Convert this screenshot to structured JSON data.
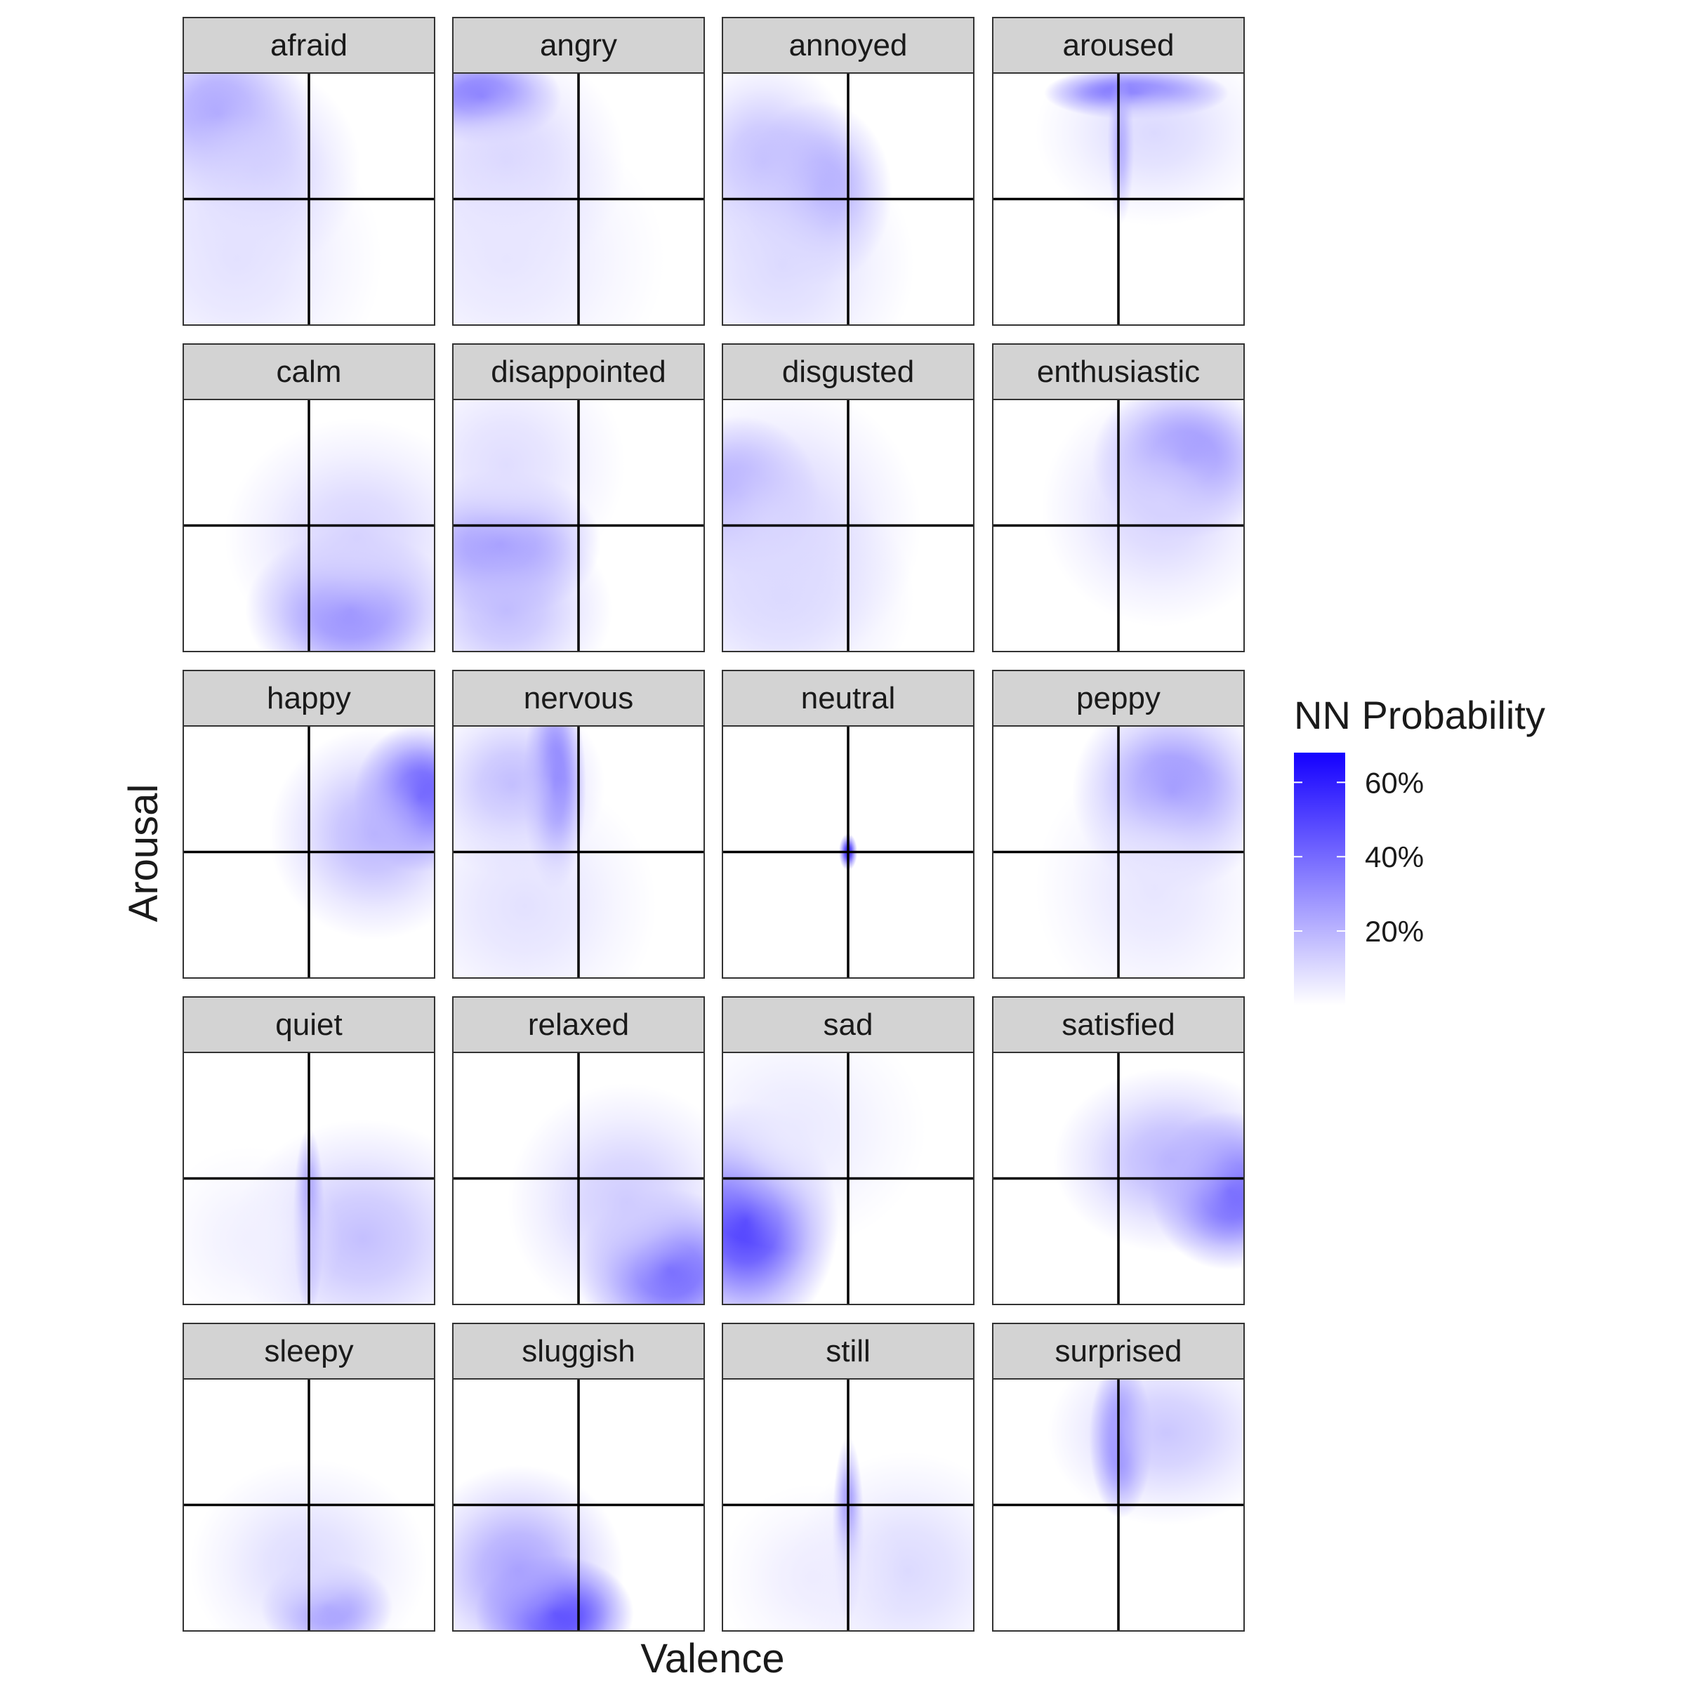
{
  "chart_data": {
    "type": "heatmap",
    "xlabel": "Valence",
    "ylabel": "Arousal",
    "xlim": [
      -1,
      1
    ],
    "ylim": [
      -1,
      1
    ],
    "grid": false,
    "reference_lines": {
      "x": 0,
      "y": 0
    },
    "facet_layout": {
      "rows": 5,
      "cols": 4
    },
    "legend": {
      "title": "NN Probability",
      "placement": "right",
      "range": [
        0,
        0.68
      ],
      "ticks": [
        0.2,
        0.4,
        0.6
      ],
      "tick_labels": [
        "20%",
        "40%",
        "60%"
      ],
      "low_color": "#ffffff",
      "high_color": "#1400ff"
    },
    "panels": [
      {
        "emotion": "afraid",
        "blobs": [
          {
            "x": -0.75,
            "y": 0.7,
            "sx": 0.35,
            "sy": 0.35,
            "peak": 0.27
          },
          {
            "x": -0.45,
            "y": 0.25,
            "sx": 0.4,
            "sy": 0.4,
            "peak": 0.15
          },
          {
            "x": -0.6,
            "y": -0.5,
            "sx": 0.55,
            "sy": 0.55,
            "peak": 0.08
          }
        ]
      },
      {
        "emotion": "angry",
        "blobs": [
          {
            "x": -0.8,
            "y": 0.85,
            "sx": 0.3,
            "sy": 0.18,
            "peak": 0.48
          },
          {
            "x": -0.6,
            "y": 0.3,
            "sx": 0.45,
            "sy": 0.45,
            "peak": 0.12
          },
          {
            "x": -0.6,
            "y": -0.5,
            "sx": 0.6,
            "sy": 0.55,
            "peak": 0.07
          }
        ]
      },
      {
        "emotion": "annoyed",
        "blobs": [
          {
            "x": -0.25,
            "y": 0.05,
            "sx": 0.28,
            "sy": 0.35,
            "peak": 0.3
          },
          {
            "x": -0.7,
            "y": 0.3,
            "sx": 0.35,
            "sy": 0.4,
            "peak": 0.18
          },
          {
            "x": -0.55,
            "y": -0.55,
            "sx": 0.5,
            "sy": 0.5,
            "peak": 0.1
          }
        ]
      },
      {
        "emotion": "aroused",
        "blobs": [
          {
            "x": 0.15,
            "y": 0.88,
            "sx": 0.35,
            "sy": 0.1,
            "peak": 0.66
          },
          {
            "x": 0.3,
            "y": 0.55,
            "sx": 0.45,
            "sy": 0.35,
            "peak": 0.1
          },
          {
            "x": 0.02,
            "y": 0.45,
            "sx": 0.05,
            "sy": 0.3,
            "peak": 0.22
          }
        ]
      },
      {
        "emotion": "calm",
        "blobs": [
          {
            "x": 0.35,
            "y": -0.7,
            "sx": 0.4,
            "sy": 0.3,
            "peak": 0.38
          },
          {
            "x": 0.4,
            "y": -0.1,
            "sx": 0.5,
            "sy": 0.45,
            "peak": 0.12
          }
        ]
      },
      {
        "emotion": "disappointed",
        "blobs": [
          {
            "x": -0.65,
            "y": -0.15,
            "sx": 0.38,
            "sy": 0.28,
            "peak": 0.38
          },
          {
            "x": -0.6,
            "y": 0.5,
            "sx": 0.45,
            "sy": 0.45,
            "peak": 0.09
          },
          {
            "x": -0.6,
            "y": -0.7,
            "sx": 0.4,
            "sy": 0.35,
            "peak": 0.18
          }
        ]
      },
      {
        "emotion": "disgusted",
        "blobs": [
          {
            "x": -0.9,
            "y": 0.25,
            "sx": 0.3,
            "sy": 0.3,
            "peak": 0.36
          },
          {
            "x": -0.6,
            "y": 0.0,
            "sx": 0.55,
            "sy": 0.55,
            "peak": 0.12
          },
          {
            "x": -0.55,
            "y": -0.6,
            "sx": 0.5,
            "sy": 0.45,
            "peak": 0.1
          }
        ]
      },
      {
        "emotion": "enthusiastic",
        "blobs": [
          {
            "x": 0.55,
            "y": 0.55,
            "sx": 0.35,
            "sy": 0.3,
            "peak": 0.4
          },
          {
            "x": 0.35,
            "y": 0.15,
            "sx": 0.45,
            "sy": 0.45,
            "peak": 0.12
          }
        ]
      },
      {
        "emotion": "happy",
        "blobs": [
          {
            "x": 0.92,
            "y": 0.45,
            "sx": 0.25,
            "sy": 0.28,
            "peak": 0.58
          },
          {
            "x": 0.55,
            "y": 0.15,
            "sx": 0.4,
            "sy": 0.4,
            "peak": 0.2
          }
        ]
      },
      {
        "emotion": "nervous",
        "blobs": [
          {
            "x": -0.2,
            "y": 0.55,
            "sx": 0.12,
            "sy": 0.4,
            "peak": 0.5
          },
          {
            "x": -0.55,
            "y": 0.55,
            "sx": 0.35,
            "sy": 0.35,
            "peak": 0.18
          },
          {
            "x": -0.45,
            "y": -0.45,
            "sx": 0.5,
            "sy": 0.5,
            "peak": 0.08
          }
        ]
      },
      {
        "emotion": "neutral",
        "blobs": [
          {
            "x": 0.0,
            "y": 0.0,
            "sx": 0.035,
            "sy": 0.07,
            "peak": 0.62
          }
        ]
      },
      {
        "emotion": "peppy",
        "blobs": [
          {
            "x": 0.45,
            "y": 0.5,
            "sx": 0.38,
            "sy": 0.38,
            "peak": 0.32
          },
          {
            "x": 0.3,
            "y": -0.3,
            "sx": 0.45,
            "sy": 0.5,
            "peak": 0.07
          }
        ]
      },
      {
        "emotion": "quiet",
        "blobs": [
          {
            "x": 0.0,
            "y": -0.35,
            "sx": 0.06,
            "sy": 0.35,
            "peak": 0.42
          },
          {
            "x": 0.45,
            "y": -0.5,
            "sx": 0.5,
            "sy": 0.45,
            "peak": 0.17
          },
          {
            "x": -0.5,
            "y": -0.5,
            "sx": 0.35,
            "sy": 0.35,
            "peak": 0.04
          }
        ]
      },
      {
        "emotion": "relaxed",
        "blobs": [
          {
            "x": 0.75,
            "y": -0.75,
            "sx": 0.35,
            "sy": 0.3,
            "peak": 0.5
          },
          {
            "x": 0.4,
            "y": -0.2,
            "sx": 0.45,
            "sy": 0.45,
            "peak": 0.14
          }
        ]
      },
      {
        "emotion": "sad",
        "blobs": [
          {
            "x": -0.85,
            "y": -0.35,
            "sx": 0.35,
            "sy": 0.45,
            "peak": 0.55
          },
          {
            "x": -0.45,
            "y": 0.4,
            "sx": 0.5,
            "sy": 0.45,
            "peak": 0.06
          }
        ]
      },
      {
        "emotion": "satisfied",
        "blobs": [
          {
            "x": 0.92,
            "y": -0.1,
            "sx": 0.3,
            "sy": 0.3,
            "peak": 0.52
          },
          {
            "x": 0.45,
            "y": 0.15,
            "sx": 0.45,
            "sy": 0.35,
            "peak": 0.2
          }
        ]
      },
      {
        "emotion": "sleepy",
        "blobs": [
          {
            "x": 0.15,
            "y": -0.85,
            "sx": 0.25,
            "sy": 0.18,
            "peak": 0.45
          },
          {
            "x": 0.0,
            "y": -0.5,
            "sx": 0.45,
            "sy": 0.4,
            "peak": 0.1
          }
        ]
      },
      {
        "emotion": "sluggish",
        "blobs": [
          {
            "x": -0.2,
            "y": -0.9,
            "sx": 0.3,
            "sy": 0.22,
            "peak": 0.66
          },
          {
            "x": -0.5,
            "y": -0.55,
            "sx": 0.4,
            "sy": 0.4,
            "peak": 0.25
          }
        ]
      },
      {
        "emotion": "still",
        "blobs": [
          {
            "x": 0.0,
            "y": -0.2,
            "sx": 0.06,
            "sy": 0.35,
            "peak": 0.4
          },
          {
            "x": 0.5,
            "y": -0.55,
            "sx": 0.45,
            "sy": 0.45,
            "peak": 0.1
          },
          {
            "x": -0.3,
            "y": -0.6,
            "sx": 0.35,
            "sy": 0.35,
            "peak": 0.05
          }
        ]
      },
      {
        "emotion": "surprised",
        "blobs": [
          {
            "x": 0.02,
            "y": 0.55,
            "sx": 0.12,
            "sy": 0.3,
            "peak": 0.52
          },
          {
            "x": 0.4,
            "y": 0.6,
            "sx": 0.45,
            "sy": 0.35,
            "peak": 0.15
          }
        ]
      }
    ]
  }
}
